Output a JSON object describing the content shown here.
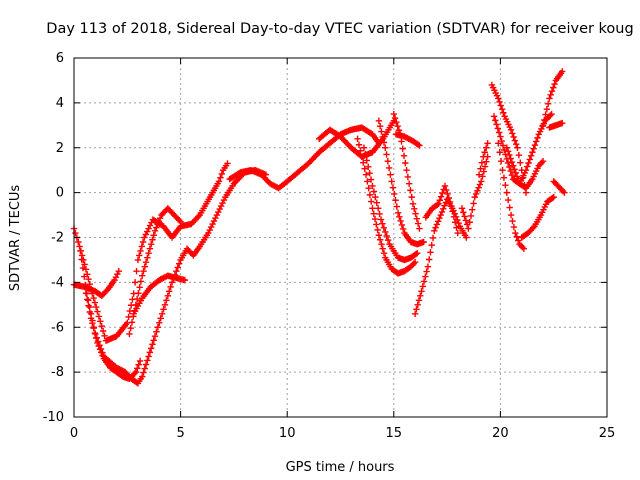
{
  "chart_data": {
    "type": "scatter",
    "title": "Day 113 of 2018, Sidereal Day-to-day VTEC variation (SDTVAR) for receiver koug",
    "xlabel": "GPS time / hours",
    "ylabel": "SDTVAR / TECUs",
    "xlim": [
      0,
      25
    ],
    "ylim": [
      -10,
      6
    ],
    "xticks": [
      0,
      5,
      10,
      15,
      20,
      25
    ],
    "yticks": [
      -10,
      -8,
      -6,
      -4,
      -2,
      0,
      2,
      4,
      6
    ],
    "grid": true,
    "marker": "plus",
    "colors": {
      "series": "#ff0000",
      "grid": "#a0a0a0",
      "axis": "#000000"
    },
    "series": [
      {
        "x": [
          0,
          0.2,
          0.5,
          0.8,
          1.1,
          1.5,
          2.0,
          2.5,
          2.8,
          3.0,
          3.3,
          3.7,
          4.2,
          4.6,
          5.0,
          5.5,
          5.9,
          6.2,
          6.5,
          6.8,
          7.0,
          7.2
        ],
        "y": [
          -1.6,
          -2.2,
          -3.2,
          -4.3,
          -5.3,
          -6.6,
          -6.4,
          -5.8,
          -4.5,
          -3.0,
          -2.0,
          -1.2,
          -1.5,
          -2.0,
          -1.5,
          -1.4,
          -1.0,
          -0.5,
          0.0,
          0.5,
          1.0,
          1.3
        ]
      },
      {
        "x": [
          0.3,
          0.6,
          1.0,
          1.4,
          2.0,
          2.4,
          2.7,
          3.0,
          3.2,
          3.5,
          3.8,
          4.2,
          4.6,
          5.0,
          5.3,
          5.6,
          5.9,
          6.3,
          6.7,
          7.1,
          7.5,
          8.0,
          8.5,
          9.0
        ],
        "y": [
          -2.6,
          -4.5,
          -6.3,
          -7.3,
          -7.8,
          -8.0,
          -8.3,
          -8.5,
          -8.2,
          -7.3,
          -6.4,
          -5.2,
          -4.0,
          -3.0,
          -2.5,
          -2.8,
          -2.4,
          -1.8,
          -1.0,
          -0.2,
          0.4,
          0.9,
          1.0,
          0.8
        ]
      },
      {
        "x": [
          0.5,
          0.8,
          1.1,
          1.4,
          1.7,
          2.0,
          2.3,
          2.6,
          2.9,
          3.1
        ],
        "y": [
          -4.2,
          -5.6,
          -6.7,
          -7.4,
          -7.8,
          -8.0,
          -8.2,
          -8.3,
          -8.0,
          -7.5
        ]
      },
      {
        "x": [
          0,
          0.5,
          1.0,
          1.3,
          1.6,
          1.9,
          2.1
        ],
        "y": [
          -4.1,
          -4.2,
          -4.4,
          -4.6,
          -4.3,
          -3.9,
          -3.5
        ]
      },
      {
        "x": [
          2.8,
          3.2,
          3.6,
          4.0,
          4.4,
          4.8,
          5.2
        ],
        "y": [
          -5.4,
          -4.7,
          -4.2,
          -3.9,
          -3.7,
          -3.8,
          -3.9
        ]
      },
      {
        "x": [
          2.6,
          2.9,
          3.2,
          3.5,
          3.8,
          4.1,
          4.4,
          4.7,
          5.0
        ],
        "y": [
          -6.3,
          -5.0,
          -3.7,
          -2.7,
          -1.7,
          -1.0,
          -0.7,
          -1.0,
          -1.3
        ]
      },
      {
        "x": [
          7.3,
          7.8,
          8.3,
          8.8,
          9.2,
          9.6,
          10.0,
          10.5,
          11.0,
          11.5,
          12.0,
          12.5,
          13.0,
          13.5,
          14.0,
          14.3
        ],
        "y": [
          0.6,
          0.9,
          1.0,
          0.8,
          0.4,
          0.2,
          0.5,
          0.9,
          1.3,
          1.8,
          2.2,
          2.6,
          2.8,
          2.9,
          2.6,
          2.2
        ]
      },
      {
        "x": [
          11.5,
          12.0,
          12.5,
          13.0,
          13.5,
          14.0,
          14.5,
          15.0
        ],
        "y": [
          2.4,
          2.8,
          2.5,
          2.0,
          1.6,
          1.8,
          2.4,
          3.2
        ]
      },
      {
        "x": [
          13.3,
          13.7,
          14.0,
          14.3,
          14.6,
          14.9,
          15.2,
          15.5,
          15.8,
          16.0
        ],
        "y": [
          2.4,
          0.8,
          -0.7,
          -1.9,
          -2.9,
          -3.4,
          -3.6,
          -3.5,
          -3.3,
          -3.1
        ]
      },
      {
        "x": [
          13.6,
          14.0,
          14.4,
          14.8,
          15.2,
          15.5,
          15.8,
          16.1
        ],
        "y": [
          2.0,
          0.3,
          -1.2,
          -2.3,
          -2.9,
          -3.0,
          -2.9,
          -2.7
        ]
      },
      {
        "x": [
          14.3,
          14.6,
          14.9,
          15.2,
          15.5,
          15.8,
          16.1,
          16.4
        ],
        "y": [
          3.2,
          2.0,
          0.5,
          -0.9,
          -1.8,
          -2.2,
          -2.3,
          -2.2
        ]
      },
      {
        "x": [
          15.0,
          15.3,
          15.6,
          15.9,
          16.2
        ],
        "y": [
          3.5,
          2.6,
          1.0,
          -0.5,
          -1.6
        ]
      },
      {
        "x": [
          15.1,
          15.5,
          15.9,
          16.2
        ],
        "y": [
          2.6,
          2.5,
          2.3,
          2.1
        ]
      },
      {
        "x": [
          16.0,
          16.3,
          16.6,
          16.9,
          17.2,
          17.5,
          17.8,
          18.1,
          18.4
        ],
        "y": [
          -5.4,
          -4.4,
          -3.3,
          -1.7,
          -1.0,
          -0.3,
          -0.8,
          -1.5,
          -2.0
        ]
      },
      {
        "x": [
          16.5,
          16.8,
          17.1,
          17.4,
          17.7,
          18.0
        ],
        "y": [
          -1.1,
          -0.7,
          -0.5,
          0.3,
          -0.6,
          -1.8
        ]
      },
      {
        "x": [
          18.2,
          18.5,
          18.8,
          19.1,
          19.4
        ],
        "y": [
          -0.7,
          -1.6,
          -0.2,
          0.5,
          1.6
        ]
      },
      {
        "x": [
          19.0,
          19.2,
          19.4
        ],
        "y": [
          0.8,
          1.6,
          2.2
        ]
      },
      {
        "x": [
          19.6,
          19.9,
          20.2,
          20.5,
          20.8,
          21.0,
          21.2
        ],
        "y": [
          4.8,
          4.2,
          3.4,
          2.8,
          2.0,
          1.0,
          0.0
        ]
      },
      {
        "x": [
          19.7,
          20.0,
          20.3,
          20.6,
          20.9,
          21.2,
          21.5,
          21.8,
          22.1,
          22.4
        ],
        "y": [
          3.4,
          2.5,
          1.5,
          0.6,
          0.4,
          1.0,
          1.8,
          2.6,
          3.2,
          3.5
        ]
      },
      {
        "x": [
          19.9,
          20.1,
          20.3,
          20.5,
          20.7,
          20.9,
          21.1
        ],
        "y": [
          2.2,
          1.0,
          0.0,
          -1.0,
          -1.8,
          -2.3,
          -2.5
        ]
      },
      {
        "x": [
          20.3,
          20.6,
          20.9,
          21.2,
          21.5,
          21.8,
          22.0
        ],
        "y": [
          2.0,
          1.2,
          0.4,
          0.2,
          0.6,
          1.2,
          1.4
        ]
      },
      {
        "x": [
          21.0,
          21.3,
          21.6,
          21.9,
          22.2,
          22.5
        ],
        "y": [
          -2.0,
          -1.8,
          -1.5,
          -1.0,
          -0.4,
          -0.2
        ]
      },
      {
        "x": [
          22.0,
          22.3,
          22.6,
          22.9
        ],
        "y": [
          3.0,
          4.2,
          5.0,
          5.4
        ]
      },
      {
        "x": [
          22.3,
          22.6,
          22.9
        ],
        "y": [
          2.9,
          3.0,
          3.1
        ]
      },
      {
        "x": [
          22.5,
          22.8,
          23.0
        ],
        "y": [
          0.5,
          0.2,
          0.0
        ]
      }
    ]
  }
}
